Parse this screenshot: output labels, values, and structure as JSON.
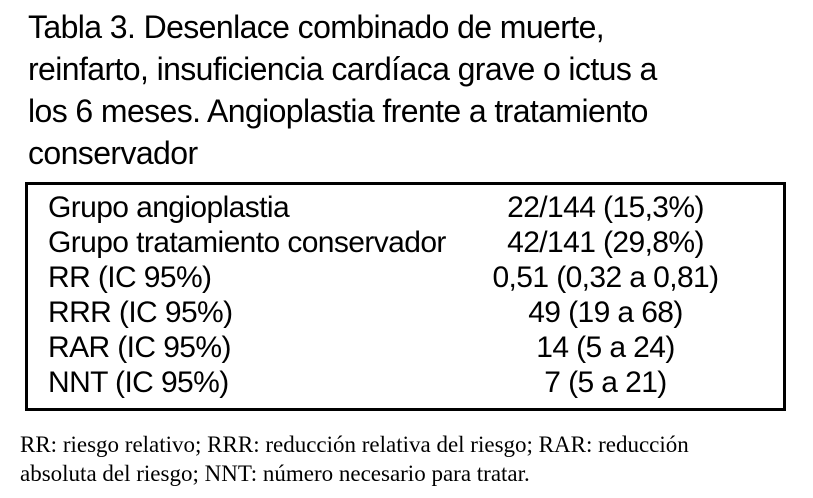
{
  "caption": {
    "lines": [
      "Tabla 3. Desenlace combinado de muerte,",
      "reinfarto, insuficiencia cardíaca grave o ictus a",
      "los 6 meses. Angioplastia frente a tratamiento",
      "conservador"
    ]
  },
  "table": {
    "rows": [
      {
        "label": "Grupo angioplastia",
        "value": "22/144 (15,3%)"
      },
      {
        "label": "Grupo tratamiento conservador",
        "value": "42/141 (29,8%)"
      },
      {
        "label": "RR (IC 95%)",
        "value": "0,51 (0,32 a 0,81)"
      },
      {
        "label": "RRR (IC 95%)",
        "value": "49 (19 a 68)"
      },
      {
        "label": "RAR (IC 95%)",
        "value": "14 (5 a 24)"
      },
      {
        "label": "NNT (IC 95%)",
        "value": "7 (5 a 21)"
      }
    ]
  },
  "footnote": {
    "lines": [
      "RR: riesgo relativo; RRR: reducción relativa del riesgo; RAR: reducción",
      "absoluta del riesgo; NNT: número necesario para tratar."
    ]
  },
  "colors": {
    "text": "#000000",
    "background": "#ffffff",
    "border": "#000000"
  }
}
